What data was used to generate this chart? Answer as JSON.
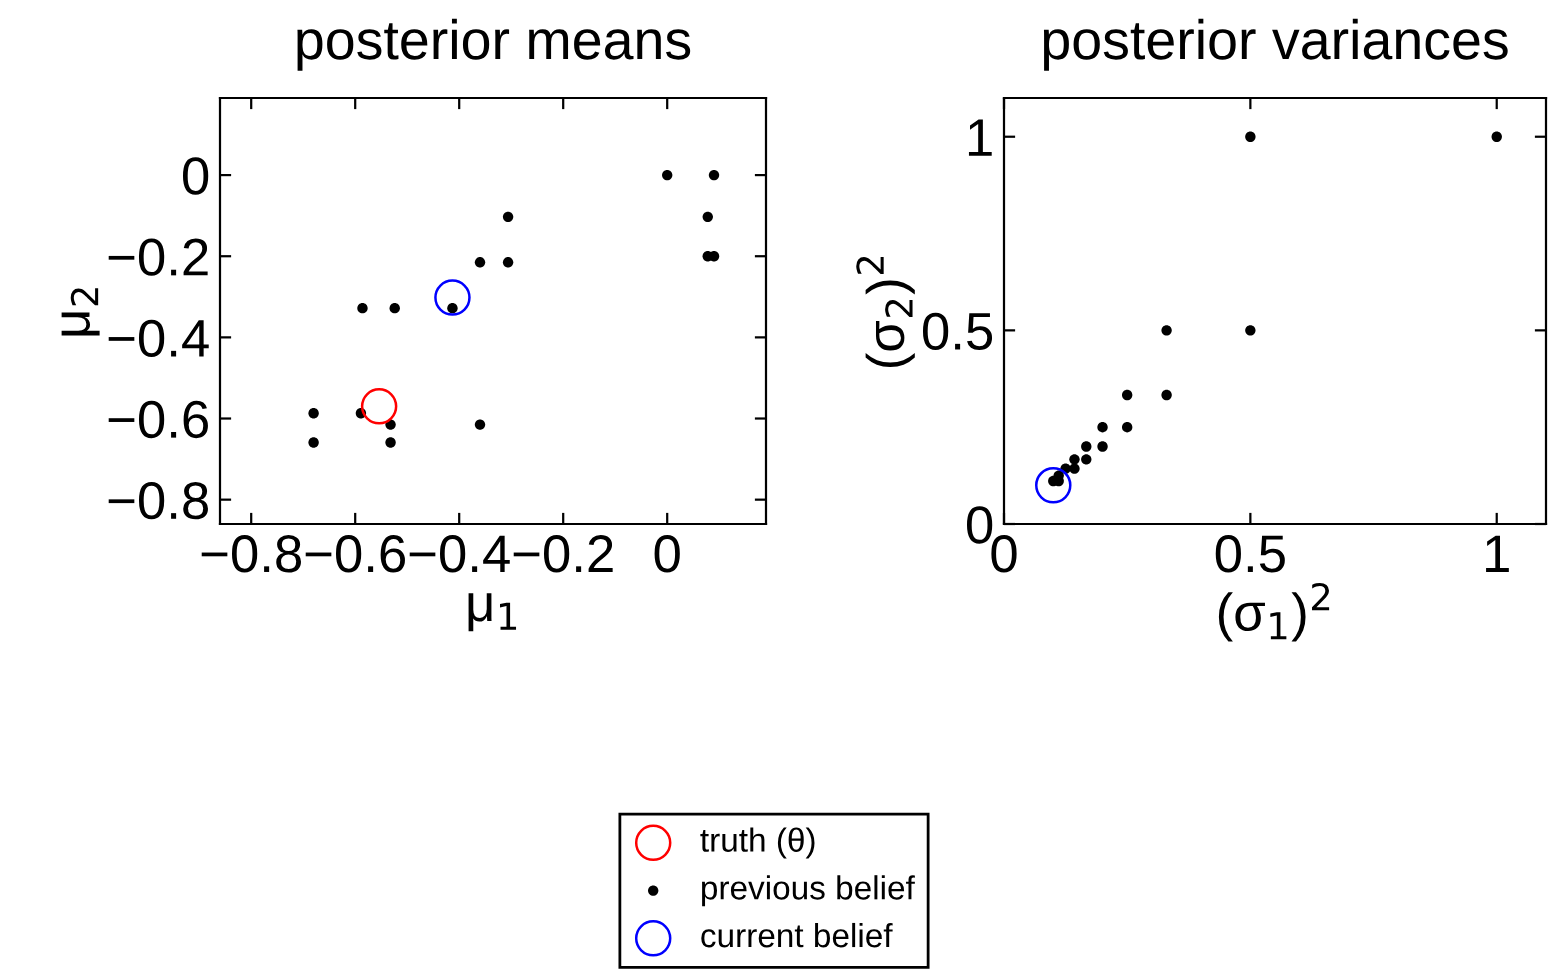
{
  "chart_data": [
    {
      "type": "scatter",
      "title": "posterior means",
      "xlabel": "μ$_{1}$",
      "ylabel": "μ$_{2}$",
      "xlim": [
        -0.86,
        0.19
      ],
      "ylim": [
        -0.86,
        0.19
      ],
      "xticks": [
        {
          "value": -0.8,
          "label": "−0.8"
        },
        {
          "value": -0.6,
          "label": "−0.6"
        },
        {
          "value": -0.4,
          "label": "−0.4"
        },
        {
          "value": -0.2,
          "label": "−0.2"
        },
        0
      ],
      "yticks": [
        {
          "value": -0.8,
          "label": "−0.8"
        },
        {
          "value": -0.6,
          "label": "−0.6"
        },
        {
          "value": -0.4,
          "label": "−0.4"
        },
        {
          "value": -0.2,
          "label": "−0.2"
        },
        0
      ],
      "grid": false,
      "legend": "bottom",
      "series": [
        {
          "name": "truth (θ)",
          "color": "#ff0000",
          "marker": "circle",
          "x": [
            -0.554
          ],
          "values": [
            -0.57
          ]
        },
        {
          "name": "previous belief",
          "color": "#000000",
          "marker": "dot",
          "x": [
            0,
            0.09,
            0.078,
            0.078,
            0.09,
            -0.306,
            -0.36,
            -0.306,
            -0.586,
            -0.524,
            -0.413,
            -0.68,
            -0.68,
            -0.589,
            -0.532,
            -0.532,
            -0.36
          ],
          "values": [
            0,
            0,
            -0.103,
            -0.2,
            -0.2,
            -0.103,
            -0.215,
            -0.215,
            -0.328,
            -0.328,
            -0.328,
            -0.587,
            -0.659,
            -0.587,
            -0.615,
            -0.659,
            -0.615
          ]
        },
        {
          "name": "current belief",
          "color": "#0000ff",
          "marker": "circle",
          "x": [
            -0.413
          ],
          "values": [
            -0.302
          ]
        }
      ]
    },
    {
      "type": "scatter",
      "title": "posterior variances",
      "xlabel": "(σ$_{1}$)$^{2}$",
      "ylabel": "(σ$_{2}$)$^{2}$",
      "xlim": [
        0,
        1.1
      ],
      "ylim": [
        0,
        1.1
      ],
      "xticks": [
        0,
        0.5,
        1
      ],
      "yticks": [
        0,
        0.5,
        1
      ],
      "grid": false,
      "series": [
        {
          "color": "#000000",
          "marker": "dot",
          "x": [
            0.5,
            1,
            0.5,
            0.33,
            0.33,
            0.25,
            0.25,
            0.2,
            0.2,
            0.167,
            0.167,
            0.143,
            0.143,
            0.125,
            0.111,
            0.1,
            0.111
          ],
          "values": [
            1,
            1,
            0.5,
            0.5,
            0.333,
            0.333,
            0.25,
            0.25,
            0.2,
            0.2,
            0.167,
            0.167,
            0.143,
            0.143,
            0.125,
            0.111,
            0.111
          ]
        },
        {
          "color": "#0000ff",
          "marker": "circle",
          "x": [
            0.1
          ],
          "values": [
            0.1
          ]
        }
      ]
    }
  ]
}
